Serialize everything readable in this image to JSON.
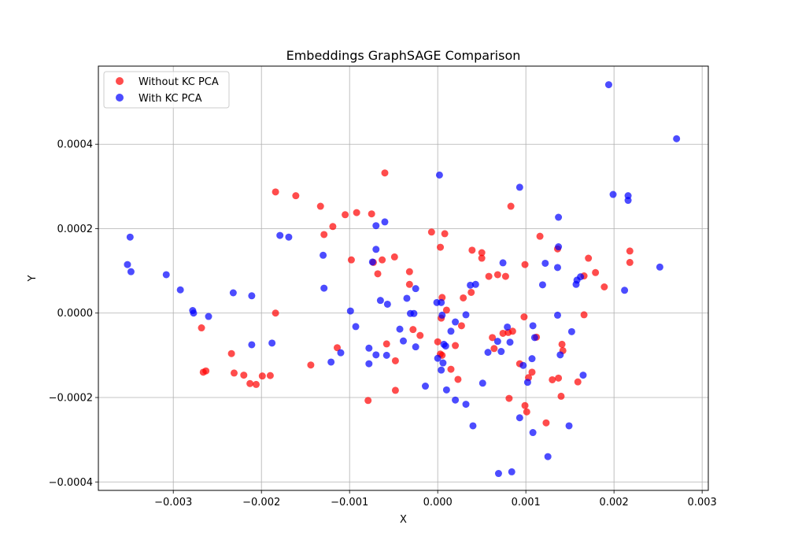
{
  "chart_data": {
    "type": "scatter",
    "title": "Embeddings GraphSAGE Comparison",
    "xlabel": "X",
    "ylabel": "Y",
    "xlim": [
      -0.00385,
      0.00307
    ],
    "ylim": [
      -0.00042,
      0.000585
    ],
    "x_ticks": [
      {
        "value": -0.003,
        "label": "−0.003"
      },
      {
        "value": -0.002,
        "label": "−0.002"
      },
      {
        "value": -0.001,
        "label": "−0.001"
      },
      {
        "value": 0.0,
        "label": "0.000"
      },
      {
        "value": 0.001,
        "label": "0.001"
      },
      {
        "value": 0.002,
        "label": "0.002"
      },
      {
        "value": 0.003,
        "label": "0.003"
      }
    ],
    "y_ticks": [
      {
        "value": -0.0004,
        "label": "−0.0004"
      },
      {
        "value": -0.0002,
        "label": "−0.0002"
      },
      {
        "value": 0.0,
        "label": "0.0000"
      },
      {
        "value": 0.0002,
        "label": "0.0002"
      },
      {
        "value": 0.0004,
        "label": "0.0004"
      }
    ],
    "grid": true,
    "legend_position": "top-left",
    "series": [
      {
        "name": "Without KC PCA",
        "color": "#ff0000",
        "points": [
          [
            -0.00184,
            0.000287
          ],
          [
            -0.00161,
            0.000278
          ],
          [
            -0.00133,
            0.000253
          ],
          [
            -0.00129,
            0.000186
          ],
          [
            -0.00119,
            0.000205
          ],
          [
            -0.00105,
            0.000233
          ],
          [
            -0.00092,
            0.000238
          ],
          [
            -0.00075,
            0.000235
          ],
          [
            -0.0006,
            0.000332
          ],
          [
            -0.00098,
            0.000126
          ],
          [
            -0.00073,
            0.00012
          ],
          [
            -0.00068,
            9.3e-05
          ],
          [
            -0.00063,
            0.000126
          ],
          [
            -0.00049,
            0.000133
          ],
          [
            -0.00032,
            9.8e-05
          ],
          [
            -0.00032,
            6.8e-05
          ],
          [
            -7e-05,
            0.000192
          ],
          [
            3e-05,
            0.000156
          ],
          [
            8e-05,
            0.000188
          ],
          [
            0.00039,
            0.000149
          ],
          [
            0.0005,
            0.000143
          ],
          [
            0.0005,
            0.00013
          ],
          [
            0.00058,
            8.7e-05
          ],
          [
            0.00068,
            9.1e-05
          ],
          [
            0.00077,
            8.7e-05
          ],
          [
            0.00083,
            0.000253
          ],
          [
            0.00099,
            0.000115
          ],
          [
            0.00116,
            0.000182
          ],
          [
            0.00136,
            0.000152
          ],
          [
            0.00171,
            0.00013
          ],
          [
            0.00166,
            8.8e-05
          ],
          [
            0.00179,
            9.6e-05
          ],
          [
            0.00189,
            6.2e-05
          ],
          [
            0.00218,
            0.000147
          ],
          [
            0.00218,
            0.00012
          ],
          [
            -0.00268,
            -3.5e-05
          ],
          [
            -0.00184,
            -0.0
          ],
          [
            -0.00144,
            -0.000123
          ],
          [
            -0.00114,
            -8.2e-05
          ],
          [
            -0.00058,
            -7.3e-05
          ],
          [
            -0.00048,
            -0.000113
          ],
          [
            -0.00028,
            -3.9e-05
          ],
          [
            -0.0002,
            -5.3e-05
          ],
          [
            0.0,
            -6.8e-05
          ],
          [
            4e-05,
            -1.2e-05
          ],
          [
            5e-05,
            3.7e-05
          ],
          [
            0.0001,
            7e-06
          ],
          [
            0.00015,
            -0.000133
          ],
          [
            0.0002,
            -7.7e-05
          ],
          [
            0.00023,
            -0.000157
          ],
          [
            0.00027,
            -3e-05
          ],
          [
            0.00029,
            3.6e-05
          ],
          [
            0.00038,
            4.9e-05
          ],
          [
            0.00062,
            -5.8e-05
          ],
          [
            0.00064,
            -8.4e-05
          ],
          [
            0.00074,
            -4.8e-05
          ],
          [
            0.0008,
            -4.6e-05
          ],
          [
            0.00085,
            -4.3e-05
          ],
          [
            0.00093,
            -0.00012
          ],
          [
            0.00098,
            -9e-06
          ],
          [
            0.00103,
            -0.000153
          ],
          [
            0.00107,
            -0.00014
          ],
          [
            0.00112,
            -5.7e-05
          ],
          [
            0.00123,
            -0.00026
          ],
          [
            0.0013,
            -0.000158
          ],
          [
            0.00137,
            -0.000154
          ],
          [
            0.00141,
            -7.4e-05
          ],
          [
            0.0014,
            -0.000197
          ],
          [
            0.00142,
            -8.9e-05
          ],
          [
            0.00159,
            -0.000163
          ],
          [
            0.00166,
            -4e-06
          ],
          [
            0.00099,
            -0.000219
          ],
          [
            0.00101,
            -0.000234
          ],
          [
            0.00081,
            -0.000202
          ],
          [
            -0.00234,
            -9.6e-05
          ],
          [
            -0.00231,
            -0.000142
          ],
          [
            -0.0022,
            -0.000147
          ],
          [
            -0.00213,
            -0.000167
          ],
          [
            -0.00206,
            -0.000169
          ],
          [
            -0.00199,
            -0.000149
          ],
          [
            -0.0019,
            -0.000148
          ],
          [
            -0.00266,
            -0.00014
          ],
          [
            -0.00263,
            -0.000137
          ],
          [
            -0.00079,
            -0.000207
          ],
          [
            -0.00048,
            -0.000183
          ],
          [
            3e-05,
            -9.7e-05
          ],
          [
            5e-05,
            -0.0001
          ]
        ]
      },
      {
        "name": "With KC PCA",
        "color": "#0000ff",
        "points": [
          [
            0.00194,
            0.000541
          ],
          [
            0.00271,
            0.000413
          ],
          [
            2e-05,
            0.000327
          ],
          [
            0.00093,
            0.000298
          ],
          [
            0.00199,
            0.000281
          ],
          [
            0.00216,
            0.000278
          ],
          [
            0.00216,
            0.000267
          ],
          [
            0.00137,
            0.000227
          ],
          [
            -0.0006,
            0.000216
          ],
          [
            -0.0007,
            0.000207
          ],
          [
            -0.00179,
            0.000184
          ],
          [
            -0.00169,
            0.00018
          ],
          [
            -0.00349,
            0.00018
          ],
          [
            -0.00352,
            0.000115
          ],
          [
            -0.00348,
            9.8e-05
          ],
          [
            -0.00308,
            9.1e-05
          ],
          [
            -0.00292,
            5.5e-05
          ],
          [
            -0.0013,
            0.000137
          ],
          [
            -0.00129,
            5.9e-05
          ],
          [
            -0.0007,
            0.000151
          ],
          [
            -0.00074,
            0.000121
          ],
          [
            -0.00065,
            3e-05
          ],
          [
            -0.00057,
            2.1e-05
          ],
          [
            -0.00035,
            3.5e-05
          ],
          [
            -0.00025,
            5.8e-05
          ],
          [
            0.00037,
            6.6e-05
          ],
          [
            0.00043,
            6.8e-05
          ],
          [
            0.00074,
            0.000119
          ],
          [
            0.00137,
            0.000157
          ],
          [
            0.00136,
            0.000108
          ],
          [
            0.00122,
            0.000118
          ],
          [
            0.00119,
            6.7e-05
          ],
          [
            0.00157,
            6.8e-05
          ],
          [
            0.00158,
            7.8e-05
          ],
          [
            0.00162,
            8.6e-05
          ],
          [
            0.00252,
            0.000109
          ],
          [
            0.00212,
            5.4e-05
          ],
          [
            -0.00232,
            4.8e-05
          ],
          [
            -0.00211,
            4.1e-05
          ],
          [
            -0.00278,
            6e-06
          ],
          [
            -0.00277,
            0.0
          ],
          [
            -0.0026,
            -8e-06
          ],
          [
            -0.00099,
            5e-06
          ],
          [
            -0.00093,
            -3.2e-05
          ],
          [
            -0.00031,
            -1e-06
          ],
          [
            -0.00027,
            -1e-06
          ],
          [
            -1e-05,
            2.5e-05
          ],
          [
            4e-05,
            2.5e-05
          ],
          [
            5e-05,
            -5e-06
          ],
          [
            0.0002,
            -2.1e-05
          ],
          [
            0.00032,
            -4e-06
          ],
          [
            0.00015,
            -4.3e-05
          ],
          [
            -0.00043,
            -3.8e-05
          ],
          [
            -0.00039,
            -6.6e-05
          ],
          [
            -0.00025,
            -8e-05
          ],
          [
            -0.00078,
            -8.3e-05
          ],
          [
            -0.0007,
            -9.9e-05
          ],
          [
            -0.00058,
            -0.0001
          ],
          [
            -0.0011,
            -9.4e-05
          ],
          [
            -0.00121,
            -0.000116
          ],
          [
            -0.00211,
            -7.5e-05
          ],
          [
            -0.00188,
            -7.1e-05
          ],
          [
            -0.00078,
            -0.00012
          ],
          [
            0.0,
            -0.000107
          ],
          [
            4e-05,
            -0.000135
          ],
          [
            6e-05,
            -0.000118
          ],
          [
            7e-05,
            -7.4e-05
          ],
          [
            9e-05,
            -7.8e-05
          ],
          [
            0.00057,
            -9.3e-05
          ],
          [
            0.00068,
            -6.7e-05
          ],
          [
            0.00072,
            -9.1e-05
          ],
          [
            0.00079,
            -3.3e-05
          ],
          [
            0.00082,
            -6.9e-05
          ],
          [
            0.00097,
            -0.000124
          ],
          [
            0.00107,
            -0.000108
          ],
          [
            0.00108,
            -3e-05
          ],
          [
            0.0011,
            -5.8e-05
          ],
          [
            0.00136,
            -5e-06
          ],
          [
            0.00139,
            -9.9e-05
          ],
          [
            0.00152,
            -4.4e-05
          ],
          [
            0.00165,
            -0.000147
          ],
          [
            0.00102,
            -0.000164
          ],
          [
            -0.00014,
            -0.000173
          ],
          [
            0.0001,
            -0.000182
          ],
          [
            0.00051,
            -0.000166
          ],
          [
            0.0002,
            -0.000206
          ],
          [
            0.00032,
            -0.000216
          ],
          [
            0.0004,
            -0.000267
          ],
          [
            0.00093,
            -0.000248
          ],
          [
            0.00108,
            -0.000283
          ],
          [
            0.00149,
            -0.000267
          ],
          [
            0.00125,
            -0.00034
          ],
          [
            0.00069,
            -0.00038
          ],
          [
            0.00084,
            -0.000376
          ]
        ]
      }
    ]
  }
}
